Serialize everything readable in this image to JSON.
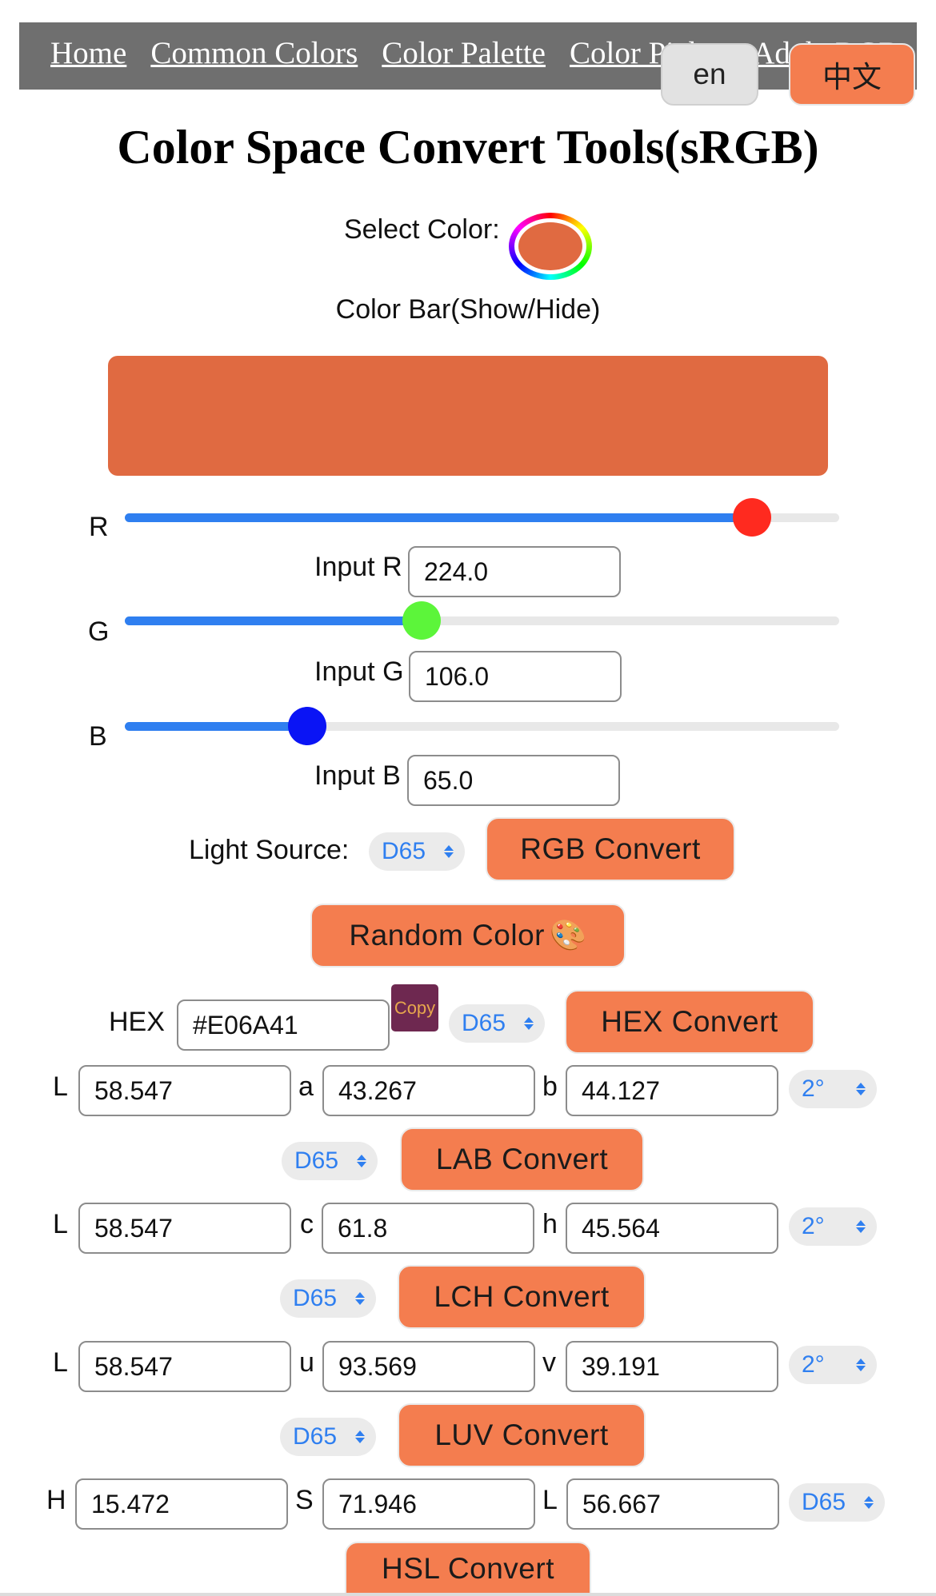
{
  "nav": {
    "links": [
      "Home",
      "Common Colors",
      "Color Palette",
      "Color Picker",
      "AdobeRGB"
    ],
    "lang_en": "en",
    "lang_zh": "中文"
  },
  "title": "Color Space Convert Tools(sRGB)",
  "select_color_label": "Select Color:",
  "color_bar_toggle": "Color Bar(Show/Hide)",
  "current_color": "#E06A41",
  "rgb": {
    "r_label": "R",
    "g_label": "G",
    "b_label": "B",
    "input_r_label": "Input R",
    "input_g_label": "Input G",
    "input_b_label": "Input B",
    "r_value": "224.0",
    "g_value": "106.0",
    "b_value": "65.0",
    "r_fraction": 0.878,
    "g_fraction": 0.416,
    "b_fraction": 0.255,
    "r_thumb_color": "#ff2a1f",
    "g_thumb_color": "#5cf53a",
    "b_thumb_color": "#0a14f5"
  },
  "light_source_label": "Light Source:",
  "illuminant": "D65",
  "observer": "2°",
  "buttons": {
    "rgb_convert": "RGB Convert",
    "random_color": "Random Color",
    "random_icon": "🎨",
    "copy": "Copy",
    "hex_convert": "HEX Convert",
    "lab_convert": "LAB Convert",
    "lch_convert": "LCH Convert",
    "luv_convert": "LUV Convert",
    "hsl_convert": "HSL Convert"
  },
  "hex": {
    "label": "HEX",
    "value": "#E06A41"
  },
  "lab": {
    "l_label": "L",
    "a_label": "a",
    "b_label": "b",
    "l": "58.547",
    "a": "43.267",
    "b": "44.127"
  },
  "lch": {
    "l_label": "L",
    "c_label": "c",
    "h_label": "h",
    "l": "58.547",
    "c": "61.8",
    "h": "45.564"
  },
  "luv": {
    "l_label": "L",
    "u_label": "u",
    "v_label": "v",
    "l": "58.547",
    "u": "93.569",
    "v": "39.191"
  },
  "hsl": {
    "h_label": "H",
    "s_label": "S",
    "l_label": "L",
    "h": "15.472",
    "s": "71.946",
    "l": "56.667"
  },
  "colors": {
    "accent": "#f47d4f",
    "slider_fill": "#2f7ff0",
    "nav_bg": "#6f6f6f",
    "copy_bg": "#6e2850"
  }
}
